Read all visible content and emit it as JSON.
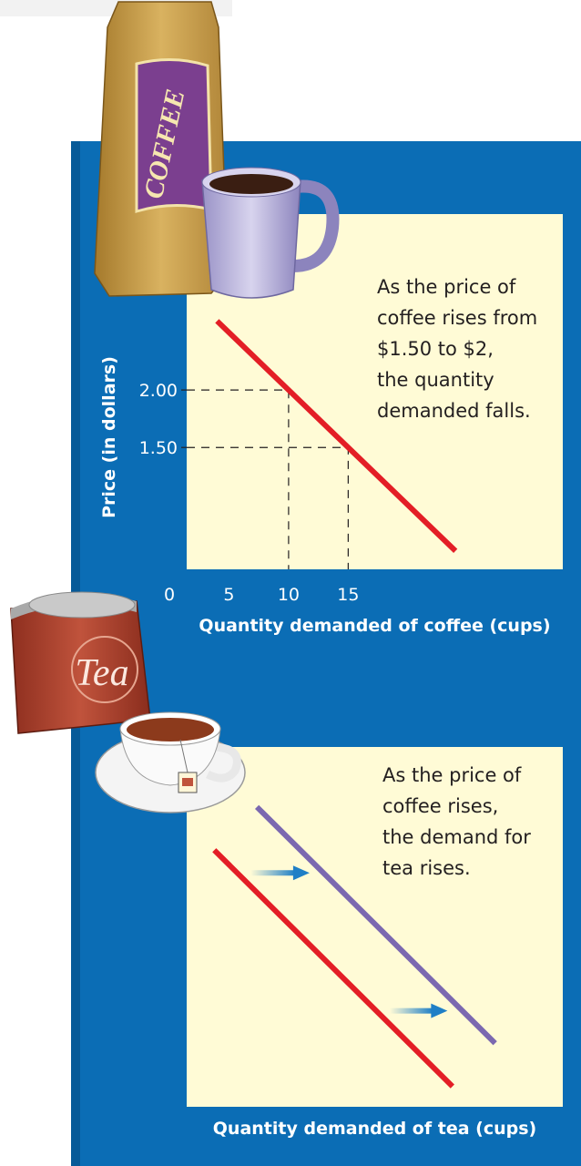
{
  "chart_data": [
    {
      "type": "line",
      "x_label": "Quantity demanded of coffee (cups)",
      "y_label": "Price (in dollars)",
      "xlim": [
        0,
        33
      ],
      "ylim": [
        0.44,
        3.53
      ],
      "xticks": [
        0,
        5,
        10,
        15
      ],
      "yticks": [
        {
          "value": 1.5,
          "label": "1.50"
        },
        {
          "value": 2,
          "label": "2.00"
        }
      ],
      "series": [
        {
          "color": "#e31e26",
          "x": [
            4,
            24
          ],
          "values": [
            2.6,
            0.6
          ]
        }
      ],
      "guides": [
        {
          "x": 10,
          "y": 2
        },
        {
          "x": 15,
          "y": 1.5
        }
      ],
      "annotation": [
        "As the price of",
        "coffee rises from",
        "$1.50 to $2,",
        "the quantity",
        "demanded falls."
      ],
      "image_label": "COFFEE"
    },
    {
      "type": "line",
      "x_label": "Quantity demanded of tea (cups)",
      "xlim": [
        0,
        30
      ],
      "ylim": [
        0,
        3
      ],
      "series": [
        {
          "color": "#e31e26",
          "x": [
            2.2,
            21.2
          ],
          "values": [
            2.14,
            0.17
          ]
        },
        {
          "color": "#7b68b0",
          "x": [
            5.6,
            24.6
          ],
          "values": [
            2.5,
            0.53
          ]
        }
      ],
      "shifts": [
        {
          "from": 5.1,
          "to": 9.8,
          "y": 1.95
        },
        {
          "from": 16.2,
          "to": 20.8,
          "y": 0.8
        }
      ],
      "annotation": [
        "As the price of",
        "coffee rises,",
        "the demand for",
        "tea rises."
      ],
      "image_label": "Tea"
    }
  ]
}
